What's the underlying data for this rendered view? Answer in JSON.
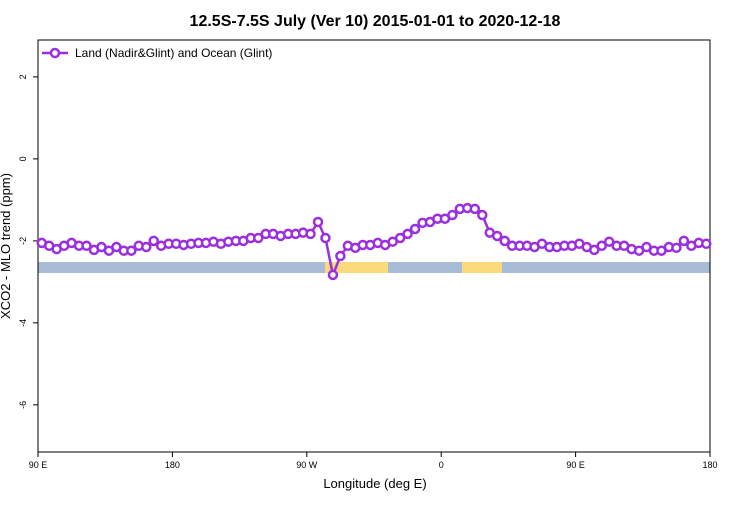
{
  "chart_data": {
    "type": "line",
    "title": "12.5S-7.5S July (Ver 10)   2015-01-01 to 2020-12-18",
    "x_label": "Longitude (deg E)",
    "y_label": "XCO2 - MLO trend (ppm)",
    "xlim": [
      90,
      540
    ],
    "ylim": [
      -7.15,
      2.9
    ],
    "xticks": [
      {
        "value": 90,
        "label": "90 E"
      },
      {
        "value": 180,
        "label": "180"
      },
      {
        "value": 270,
        "label": "90 W"
      },
      {
        "value": 360,
        "label": "0"
      },
      {
        "value": 450,
        "label": "90 E"
      },
      {
        "value": 540,
        "label": "180"
      }
    ],
    "yticks": [
      2,
      0,
      -2,
      -4,
      -6
    ],
    "legend": "top-left",
    "x": [
      92.5,
      97.5,
      102.5,
      107.5,
      112.5,
      117.5,
      122.5,
      127.5,
      132.5,
      137.5,
      142.5,
      147.5,
      152.5,
      157.5,
      162.5,
      167.5,
      172.5,
      177.5,
      182.5,
      187.5,
      192.5,
      197.5,
      202.5,
      207.5,
      212.5,
      217.5,
      222.5,
      227.5,
      232.5,
      237.5,
      242.5,
      247.5,
      252.5,
      257.5,
      262.5,
      267.5,
      272.5,
      277.5,
      282.5,
      287.5,
      292.5,
      297.5,
      302.5,
      307.5,
      312.5,
      317.5,
      322.5,
      327.5,
      332.5,
      337.5,
      342.5,
      347.5,
      352.5,
      357.5,
      362.5,
      367.5,
      372.5,
      377.5,
      382.5,
      387.5,
      392.5,
      397.5,
      402.5,
      407.5,
      412.5,
      417.5,
      422.5,
      427.5,
      432.5,
      437.5,
      442.5,
      447.5,
      452.5,
      457.5,
      462.5,
      467.5,
      472.5,
      477.5,
      482.5,
      487.5,
      492.5,
      497.5,
      502.5,
      507.5,
      512.5,
      517.5,
      522.5,
      527.5,
      532.5,
      537.5
    ],
    "series": [
      {
        "name": "Land (Nadir&Glint) and Ocean (Glint)",
        "color": "#9b2fe0",
        "values": [
          -2.05,
          -2.12,
          -2.2,
          -2.12,
          -2.05,
          -2.12,
          -2.12,
          -2.22,
          -2.15,
          -2.24,
          -2.15,
          -2.24,
          -2.24,
          -2.12,
          -2.15,
          -2.0,
          -2.12,
          -2.07,
          -2.07,
          -2.1,
          -2.07,
          -2.05,
          -2.05,
          -2.02,
          -2.07,
          -2.02,
          -2.0,
          -2.0,
          -1.93,
          -1.93,
          -1.83,
          -1.83,
          -1.88,
          -1.83,
          -1.83,
          -1.8,
          -1.83,
          -1.54,
          -1.93,
          -2.83,
          -2.37,
          -2.12,
          -2.17,
          -2.1,
          -2.1,
          -2.05,
          -2.1,
          -2.02,
          -1.93,
          -1.83,
          -1.71,
          -1.56,
          -1.54,
          -1.46,
          -1.46,
          -1.37,
          -1.22,
          -1.2,
          -1.22,
          -1.37,
          -1.8,
          -1.88,
          -2.0,
          -2.12,
          -2.12,
          -2.12,
          -2.15,
          -2.07,
          -2.15,
          -2.15,
          -2.12,
          -2.12,
          -2.07,
          -2.15,
          -2.22,
          -2.12,
          -2.02,
          -2.12,
          -2.12,
          -2.2,
          -2.24,
          -2.15,
          -2.24,
          -2.24,
          -2.15,
          -2.17,
          -2.0,
          -2.12,
          -2.05,
          -2.07
        ]
      }
    ]
  }
}
